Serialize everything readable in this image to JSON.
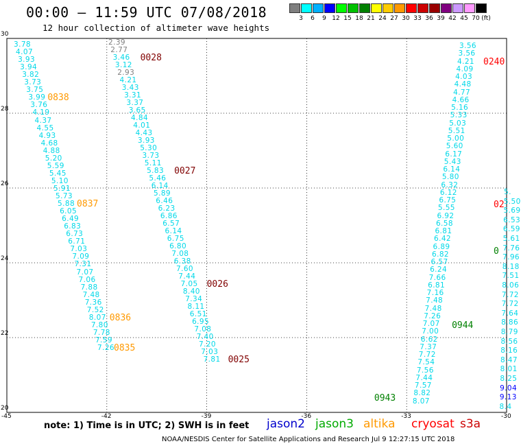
{
  "title": "00:00 – 11:59 UTC 07/08/2018",
  "subtitle": "12 hour collection of altimeter wave heights",
  "colorbar": {
    "unit_label": "(ft)",
    "ticks": [
      "3",
      "6",
      "9",
      "12",
      "15",
      "18",
      "21",
      "24",
      "27",
      "30",
      "33",
      "36",
      "39",
      "42",
      "45",
      "70"
    ],
    "colors": [
      "#7f7f7f",
      "#00ffff",
      "#00b0ff",
      "#0000ff",
      "#00ff00",
      "#00c000",
      "#008000",
      "#ffff00",
      "#ffcc00",
      "#ff9900",
      "#ff0000",
      "#cc0000",
      "#990000",
      "#800080",
      "#cc99ff",
      "#ff99ff",
      "#000000"
    ]
  },
  "map": {
    "lon_range": [
      -45,
      -30
    ],
    "lat_range": [
      20,
      30
    ],
    "x_labels": [
      "-45",
      "-42",
      "-39",
      "-36",
      "-33",
      "-30"
    ],
    "y_labels": [
      "30",
      "28",
      "26",
      "24",
      "22",
      "20"
    ],
    "grid": "dotted"
  },
  "tracks": [
    {
      "id": "track-1",
      "values": [
        "3.78",
        "4.07",
        "3.93",
        "3.94",
        "3.82",
        "3.73",
        "3.75",
        "3.99",
        "3.76",
        "4.19",
        "4.37",
        "4.55",
        "4.93",
        "4.68",
        "4.88",
        "5.20",
        "5.59",
        "5.45",
        "5.10",
        "5.91",
        "5.73",
        "5.88",
        "6.05",
        "6.49",
        "6.83",
        "6.73",
        "6.71",
        "7.03",
        "7.09",
        "7.31",
        "7.07",
        "7.06",
        "7.88",
        "7.48",
        "7.36",
        "7.52",
        "8.07",
        "7.80",
        "7.78",
        "7.59",
        "7.26"
      ],
      "value_colors": [
        "#00ffff"
      ],
      "times": [
        {
          "text": "0838",
          "color": "#ff9900",
          "row": 7
        },
        {
          "text": "0837",
          "color": "#ff9900",
          "row": 21
        },
        {
          "text": "0836",
          "color": "#ff9900",
          "row": 36
        },
        {
          "text": "0835",
          "color": "#ff9900",
          "row": 40
        }
      ]
    },
    {
      "id": "track-2",
      "values": [
        "2.39",
        "2.77",
        "3.46",
        "3.12",
        "2.93",
        "4.21",
        "3.43",
        "3.31",
        "3.37",
        "3.65",
        "4.84",
        "4.01",
        "4.43",
        "3.93",
        "5.30",
        "3.73",
        "5.11",
        "5.83",
        "5.46",
        "6.14",
        "5.89",
        "6.46",
        "6.23",
        "6.86",
        "6.57",
        "6.14",
        "6.75",
        "6.80",
        "7.08",
        "6.38",
        "7.60",
        "7.44",
        "7.05",
        "8.40",
        "7.34",
        "8.11",
        "6.51",
        "6.95",
        "7.08",
        "7.40",
        "7.20",
        "7.03",
        "7.81"
      ],
      "value_colors": [
        "#7f7f7f",
        "#7f7f7f",
        "#00ffff",
        "#00ffff",
        "#7f7f7f",
        "#00ffff"
      ],
      "times": [
        {
          "text": "0028",
          "color": "#800000",
          "row": 2
        },
        {
          "text": "0027",
          "color": "#800000",
          "row": 17
        },
        {
          "text": "0026",
          "color": "#800000",
          "row": 32
        },
        {
          "text": "0025",
          "color": "#800000",
          "row": 42
        }
      ]
    },
    {
      "id": "track-3",
      "values": [
        "3.56",
        "3.56",
        "4.21",
        "4.09",
        "4.03",
        "4.48",
        "4.77",
        "4.66",
        "5.16",
        "5.33",
        "5.03",
        "5.51",
        "5.00",
        "5.60",
        "6.17",
        "5.43",
        "6.14",
        "5.80",
        "6.32",
        "6.12",
        "6.75",
        "5.55",
        "6.92",
        "6.58",
        "6.81",
        "6.42",
        "6.89",
        "6.82",
        "6.57",
        "6.24",
        "7.66",
        "6.81",
        "7.16",
        "7.48",
        "7.48",
        "7.26",
        "7.07",
        "7.00",
        "6.62",
        "7.37",
        "7.72",
        "7.54",
        "7.56",
        "7.44",
        "7.57",
        "8.82",
        "8.07"
      ],
      "value_colors": [
        "#00ffff"
      ],
      "times": [
        {
          "text": "0240",
          "color": "#ff0000",
          "row": 2
        },
        {
          "text": "0943",
          "color": "#008000",
          "row": 46
        }
      ]
    },
    {
      "id": "track-4",
      "values": [
        "5.",
        "5.50",
        "5.69",
        "6.53",
        "6.59",
        "5.61",
        "7.76",
        "7.96",
        "8.18",
        "7.51",
        "8.06",
        "7.72",
        "7.72",
        "7.64",
        "8.86",
        "8.79",
        "8.56",
        "8.16",
        "8.47",
        "8.01",
        "8.25",
        "9.04",
        "9.13",
        "8.4"
      ],
      "value_colors": [
        "#00ffff",
        "#00ffff",
        "#00ffff",
        "#00ffff",
        "#00ffff",
        "#00ffff",
        "#00ffff",
        "#00ffff",
        "#00ffff",
        "#00ffff",
        "#00ffff",
        "#00ffff",
        "#00ffff",
        "#00ffff",
        "#00ffff",
        "#00ffff",
        "#00ffff",
        "#00ffff",
        "#00ffff",
        "#00ffff",
        "#00ffff",
        "#0000ff",
        "#0000ff",
        "#00ffff"
      ],
      "times": [
        {
          "text": "02",
          "color": "#ff0000",
          "row": 1
        },
        {
          "text": "0",
          "color": "#008000",
          "row": 6
        },
        {
          "text": "0944",
          "color": "#008000",
          "row": 14
        }
      ]
    }
  ],
  "note": "note: 1) Time is in UTC; 2) SWH is in feet",
  "legend": [
    {
      "name": "jason2",
      "color": "#0000cc"
    },
    {
      "name": "jason3",
      "color": "#00aa00"
    },
    {
      "name": "altika",
      "color": "#ff9900"
    },
    {
      "name": "cryosat",
      "color": "#ff0000"
    },
    {
      "name": "s3a",
      "color": "#cc0000"
    }
  ],
  "credit": "NOAA/NESDIS Center for Satellite Applications and Research   Jul  9 12:27:15 UTC 2018"
}
